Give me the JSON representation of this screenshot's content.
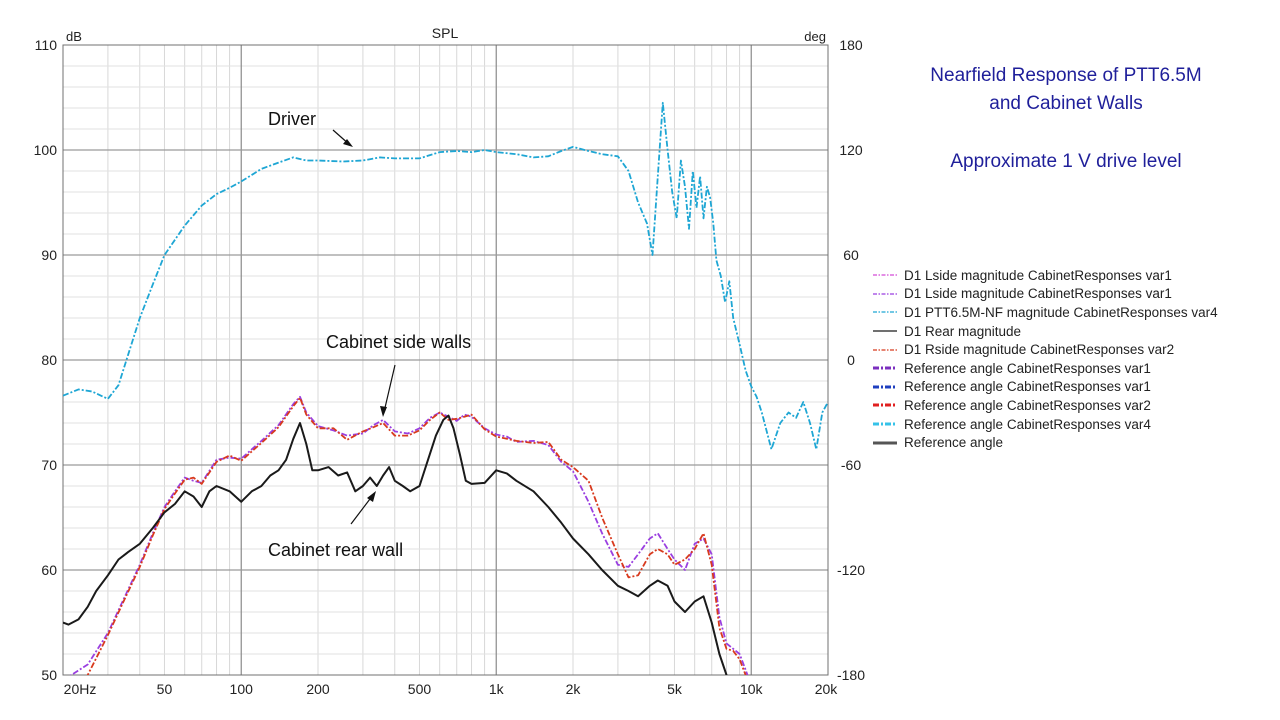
{
  "chart_data": {
    "type": "line",
    "title": "SPL",
    "y_unit": "dB",
    "y2_unit": "deg",
    "xlim": [
      20,
      20000
    ],
    "x_scale": "log",
    "ylim": [
      50,
      110
    ],
    "y2lim": [
      -180,
      180
    ],
    "grid": true,
    "x_ticks": [
      {
        "v": 20,
        "label": "20Hz"
      },
      {
        "v": 50,
        "label": "50"
      },
      {
        "v": 100,
        "label": "100"
      },
      {
        "v": 200,
        "label": "200"
      },
      {
        "v": 500,
        "label": "500"
      },
      {
        "v": 1000,
        "label": "1k"
      },
      {
        "v": 2000,
        "label": "2k"
      },
      {
        "v": 5000,
        "label": "5k"
      },
      {
        "v": 10000,
        "label": "10k"
      },
      {
        "v": 20000,
        "label": "20k"
      }
    ],
    "y_ticks": [
      {
        "v": 50,
        "label": "50"
      },
      {
        "v": 60,
        "label": "60"
      },
      {
        "v": 70,
        "label": "70"
      },
      {
        "v": 80,
        "label": "80"
      },
      {
        "v": 90,
        "label": "90"
      },
      {
        "v": 100,
        "label": "100"
      },
      {
        "v": 110,
        "label": "110"
      }
    ],
    "y2_ticks": [
      {
        "v": -180,
        "label": "-180"
      },
      {
        "v": -120,
        "label": "-120"
      },
      {
        "v": -60,
        "label": "-60"
      },
      {
        "v": 0,
        "label": "0"
      },
      {
        "v": 60,
        "label": "60"
      },
      {
        "v": 120,
        "label": "120"
      },
      {
        "v": 180,
        "label": "180"
      }
    ],
    "series": [
      {
        "name": "D1 PTT6.5M-NF magnitude CabinetResponses var4",
        "color": "#1ea6d4",
        "dash": "6 2 2 2",
        "x": [
          20,
          23,
          26,
          30,
          33,
          36,
          40,
          45,
          50,
          60,
          70,
          80,
          90,
          100,
          120,
          140,
          160,
          180,
          200,
          250,
          300,
          350,
          400,
          500,
          600,
          700,
          800,
          900,
          1000,
          1200,
          1400,
          1600,
          1800,
          2000,
          2300,
          2600,
          3000,
          3300,
          3600,
          3900,
          4100,
          4300,
          4500,
          4700,
          4900,
          5100,
          5300,
          5500,
          5700,
          5900,
          6100,
          6300,
          6500,
          6700,
          6900,
          7100,
          7300,
          7600,
          7900,
          8200,
          8500,
          9000,
          9500,
          10000,
          10500,
          11000,
          12000,
          13000,
          14000,
          15000,
          16000,
          17000,
          18000,
          19000,
          20000
        ],
        "values": [
          76.6,
          77.2,
          77.0,
          76.3,
          77.6,
          80.5,
          84,
          87.2,
          90,
          92.8,
          94.7,
          95.8,
          96.4,
          97,
          98.2,
          98.8,
          99.3,
          99.0,
          99.0,
          98.9,
          99.0,
          99.3,
          99.2,
          99.2,
          99.8,
          99.9,
          99.8,
          100.0,
          99.8,
          99.6,
          99.3,
          99.4,
          99.9,
          100.3,
          99.9,
          99.6,
          99.4,
          98.0,
          95.0,
          93.0,
          90.0,
          97.5,
          104.5,
          100,
          96,
          93.5,
          99.0,
          96.5,
          92.5,
          98.0,
          94.5,
          97.5,
          93.5,
          96.5,
          95.5,
          93.0,
          89.5,
          88.0,
          85.5,
          87.5,
          84.0,
          81.5,
          79.0,
          77.5,
          76.5,
          75.0,
          71.5,
          74.0,
          75.0,
          74.5,
          76.0,
          74.0,
          71.5,
          75.0,
          76.0
        ]
      },
      {
        "name": "D1 Lside magnitude CabinetResponses var1",
        "color": "#9a3fe0",
        "dash": "6 2 2 2",
        "x": [
          20,
          25,
          30,
          35,
          40,
          45,
          50,
          55,
          60,
          65,
          70,
          80,
          90,
          100,
          110,
          120,
          140,
          160,
          170,
          180,
          200,
          230,
          260,
          300,
          330,
          360,
          400,
          450,
          500,
          550,
          600,
          650,
          700,
          750,
          800,
          900,
          1000,
          1100,
          1200,
          1400,
          1600,
          1800,
          2000,
          2300,
          2600,
          3000,
          3300,
          3600,
          4000,
          4300,
          4700,
          5000,
          5500,
          6000,
          6500,
          7000,
          7500,
          8000,
          8500,
          9000,
          9500,
          10000
        ],
        "values": [
          49.5,
          51.0,
          54.0,
          57.5,
          60.5,
          63.5,
          66.0,
          67.5,
          68.8,
          68.5,
          68.3,
          70.5,
          70.7,
          70.6,
          71.5,
          72.3,
          73.8,
          75.8,
          76.5,
          75.0,
          73.7,
          73.3,
          72.8,
          73.0,
          73.8,
          74.3,
          73.2,
          73.0,
          73.5,
          74.5,
          75.0,
          74.6,
          74.2,
          74.8,
          74.6,
          73.5,
          72.9,
          72.7,
          72.2,
          72.3,
          71.9,
          70.3,
          69.4,
          66.5,
          63.5,
          60.5,
          60.3,
          61.5,
          63.0,
          63.5,
          62.0,
          61.0,
          60.0,
          62.5,
          63.0,
          61.5,
          55.5,
          53.0,
          52.5,
          52.0,
          50.5,
          49.0
        ]
      },
      {
        "name": "D1 Rside magnitude CabinetResponses var2",
        "color": "#d83a1e",
        "dash": "6 2 2 2",
        "x": [
          20,
          25,
          30,
          35,
          40,
          45,
          50,
          55,
          60,
          65,
          70,
          80,
          90,
          100,
          110,
          120,
          140,
          160,
          170,
          180,
          200,
          230,
          260,
          300,
          330,
          360,
          400,
          450,
          500,
          550,
          600,
          650,
          700,
          750,
          800,
          900,
          1000,
          1100,
          1200,
          1400,
          1600,
          1800,
          2000,
          2300,
          2600,
          3000,
          3300,
          3600,
          4000,
          4300,
          4700,
          5000,
          5500,
          6000,
          6500,
          7000,
          7500,
          8000,
          8500,
          9000,
          9500,
          10000
        ],
        "values": [
          47.0,
          50.0,
          53.8,
          57.3,
          60.3,
          63.3,
          65.8,
          67.3,
          68.6,
          68.8,
          68.2,
          70.3,
          70.9,
          70.4,
          71.3,
          72.1,
          73.6,
          75.6,
          76.4,
          74.8,
          73.5,
          73.5,
          72.4,
          73.2,
          73.6,
          74.0,
          72.8,
          72.8,
          73.3,
          74.3,
          75.0,
          74.3,
          74.4,
          74.6,
          74.8,
          73.4,
          72.7,
          72.5,
          72.3,
          72.1,
          72.2,
          70.5,
          69.8,
          68.5,
          65.0,
          61.5,
          59.3,
          59.5,
          61.5,
          62.0,
          61.5,
          60.5,
          61.0,
          62.0,
          63.5,
          60.5,
          54.5,
          52.5,
          52.3,
          51.5,
          50.0,
          48.0
        ]
      },
      {
        "name": "D1 Rear magnitude",
        "color": "#1a1a1a",
        "dash": "",
        "x": [
          20,
          21,
          23,
          25,
          27,
          30,
          33,
          36,
          40,
          45,
          50,
          55,
          60,
          65,
          70,
          75,
          80,
          90,
          100,
          110,
          120,
          130,
          140,
          150,
          160,
          170,
          180,
          190,
          200,
          220,
          240,
          260,
          280,
          300,
          320,
          340,
          360,
          380,
          400,
          430,
          460,
          500,
          540,
          580,
          620,
          650,
          680,
          720,
          760,
          800,
          900,
          1000,
          1100,
          1200,
          1400,
          1600,
          1800,
          2000,
          2300,
          2600,
          3000,
          3300,
          3600,
          4000,
          4300,
          4700,
          5000,
          5500,
          6000,
          6500,
          7000,
          7500,
          8000,
          8500,
          9000,
          9500
        ],
        "values": [
          55.0,
          54.8,
          55.3,
          56.5,
          58.0,
          59.5,
          61.0,
          61.7,
          62.5,
          64.0,
          65.5,
          66.3,
          67.5,
          67.0,
          66.0,
          67.5,
          68.0,
          67.5,
          66.5,
          67.5,
          68.0,
          69.0,
          69.5,
          70.5,
          72.5,
          74.0,
          72.0,
          69.5,
          69.5,
          69.8,
          69.0,
          69.3,
          67.5,
          68.0,
          68.8,
          68.0,
          69.0,
          69.8,
          68.5,
          68.0,
          67.5,
          68.0,
          70.5,
          72.8,
          74.3,
          74.7,
          73.5,
          71.0,
          68.5,
          68.2,
          68.3,
          69.5,
          69.2,
          68.5,
          67.5,
          66.0,
          64.5,
          63.0,
          61.5,
          60.0,
          58.5,
          58.0,
          57.5,
          58.5,
          59.0,
          58.5,
          57.0,
          56.0,
          57.0,
          57.5,
          55.0,
          52.0,
          50.0,
          48.0,
          46.0,
          44.0
        ]
      }
    ],
    "legend": {
      "placement": "right",
      "items": [
        {
          "label": "D1 Lside magnitude CabinetResponses var1",
          "color": "#d34bd8",
          "style": "dashdot"
        },
        {
          "label": "D1 Lside magnitude CabinetResponses var1",
          "color": "#9a3fe0",
          "style": "dashdot"
        },
        {
          "label": "D1 PTT6.5M-NF magnitude CabinetResponses var4",
          "color": "#1ea6d4",
          "style": "dashdot"
        },
        {
          "label": "D1 Rear magnitude",
          "color": "#1a1a1a",
          "style": "solid"
        },
        {
          "label": "D1 Rside magnitude CabinetResponses var2",
          "color": "#d83a1e",
          "style": "dashdot"
        },
        {
          "label": "Reference angle CabinetResponses var1",
          "color": "#7b2fbf",
          "style": "bold-dashdot"
        },
        {
          "label": "Reference angle CabinetResponses var1",
          "color": "#1f3fbf",
          "style": "bold-dashdot"
        },
        {
          "label": "Reference angle CabinetResponses var2",
          "color": "#e02020",
          "style": "bold-dashdot"
        },
        {
          "label": "Reference angle CabinetResponses var4",
          "color": "#35c2e8",
          "style": "bold-dashdot"
        },
        {
          "label": "Reference angle",
          "color": "#555555",
          "style": "bold-solid"
        }
      ]
    },
    "annotations": [
      {
        "text": "Driver",
        "target_x": 300,
        "target_y": 100.3
      },
      {
        "text": "Cabinet side walls",
        "target_x": 355,
        "target_y": 74.2
      },
      {
        "text": "Cabinet rear wall",
        "target_x": 360,
        "target_y": 69.3
      }
    ]
  },
  "side_title": {
    "line1": "Nearfield Response of PTT6.5M",
    "line2": "and Cabinet Walls",
    "line3": "Approximate 1 V drive level"
  }
}
